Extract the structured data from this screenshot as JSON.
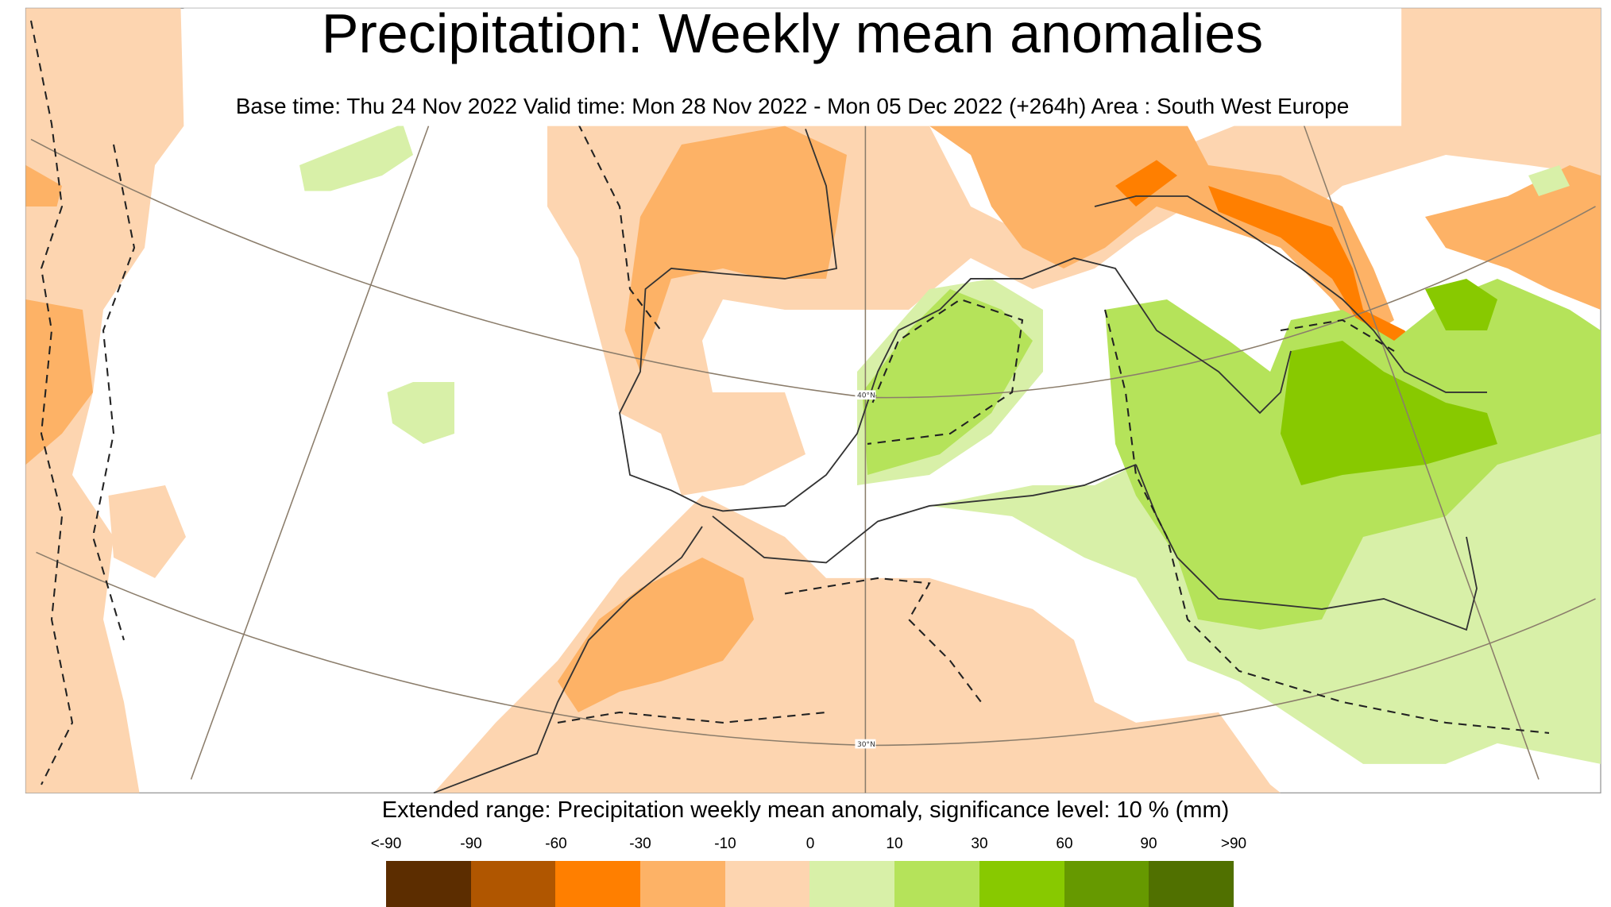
{
  "header": {
    "title": "Precipitation: Weekly mean anomalies",
    "subtitle": "Base time: Thu 24 Nov 2022 Valid time: Mon 28 Nov 2022 - Mon 05 Dec 2022 (+264h) Area : South West Europe"
  },
  "map": {
    "region": "South West Europe",
    "latitude_labels": [
      "40°N",
      "30°N"
    ],
    "colors": {
      "light_orange": "#fdd5b0",
      "mid_orange": "#fdb266",
      "orange": "#ff7f00",
      "light_green": "#d8f0a8",
      "green": "#b5e35a",
      "bright_green": "#88c900"
    }
  },
  "legend": {
    "title": "Extended range: Precipitation weekly mean anomaly, significance level: 10 % (mm)",
    "tick_labels": [
      "<-90",
      "-90",
      "-60",
      "-30",
      "-10",
      "0",
      "10",
      "30",
      "60",
      "90",
      ">90"
    ],
    "colors": [
      "#5c2d00",
      "#b05600",
      "#ff7f00",
      "#fdb266",
      "#fdd5b0",
      "#d8f0a8",
      "#b5e35a",
      "#88c900",
      "#669900",
      "#507000"
    ]
  }
}
